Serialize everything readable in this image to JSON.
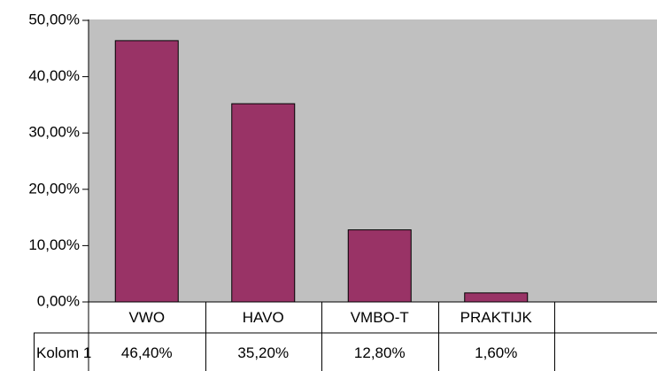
{
  "chart_data": {
    "type": "bar",
    "categories": [
      "VWO",
      "HAVO",
      "VMBO-T",
      "PRAKTIJK",
      null
    ],
    "series": [
      {
        "name": "Kolom 1",
        "color": "#993366",
        "values": [
          46.4,
          35.2,
          12.8,
          1.6,
          null
        ],
        "value_labels": [
          "46,40%",
          "35,20%",
          "12,80%",
          "1,60%",
          null
        ]
      }
    ],
    "ylim": [
      0,
      50
    ],
    "yticks": [
      {
        "value": 0,
        "label": "0,00%"
      },
      {
        "value": 10,
        "label": "10,00%"
      },
      {
        "value": 20,
        "label": "20,00%"
      },
      {
        "value": 30,
        "label": "30,00%"
      },
      {
        "value": 40,
        "label": "40,00%"
      },
      {
        "value": 50,
        "label": "50,00%"
      }
    ],
    "plot_background": "#c0c0c0",
    "data_table": true
  }
}
